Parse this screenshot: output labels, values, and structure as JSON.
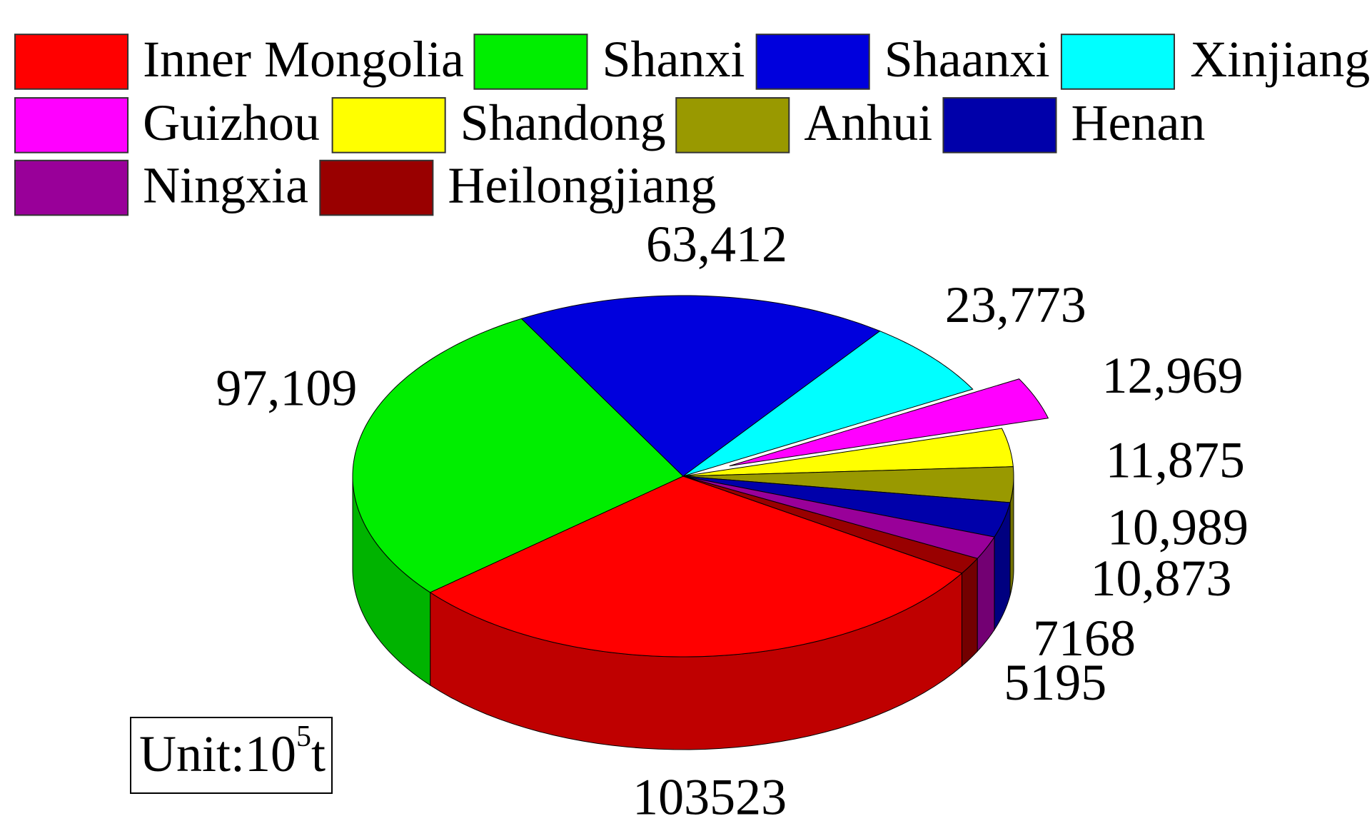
{
  "chart_data": {
    "type": "pie3d",
    "categories": [
      "Inner Mongolia",
      "Shanxi",
      "Shaanxi",
      "Xinjiang",
      "Guizhou",
      "Shandong",
      "Anhui",
      "Henan",
      "Ningxia",
      "Heilongjiang"
    ],
    "values": [
      103523,
      97109,
      63412,
      23773,
      12969,
      11875,
      10989,
      10873,
      7168,
      5195
    ],
    "value_labels": [
      "103523",
      "97,109",
      "63,412",
      "23,773",
      "12,969",
      "11,875",
      "10,989",
      "10,873",
      "7168",
      "5195"
    ],
    "colors": [
      "#ff0000",
      "#00ee00",
      "#0000dd",
      "#00ffff",
      "#ff00ff",
      "#ffff00",
      "#999900",
      "#0000aa",
      "#990099",
      "#990000"
    ],
    "exploded": [
      4
    ],
    "unit": {
      "text": "Unit:10",
      "superscript": "5",
      "suffix": "t"
    }
  }
}
